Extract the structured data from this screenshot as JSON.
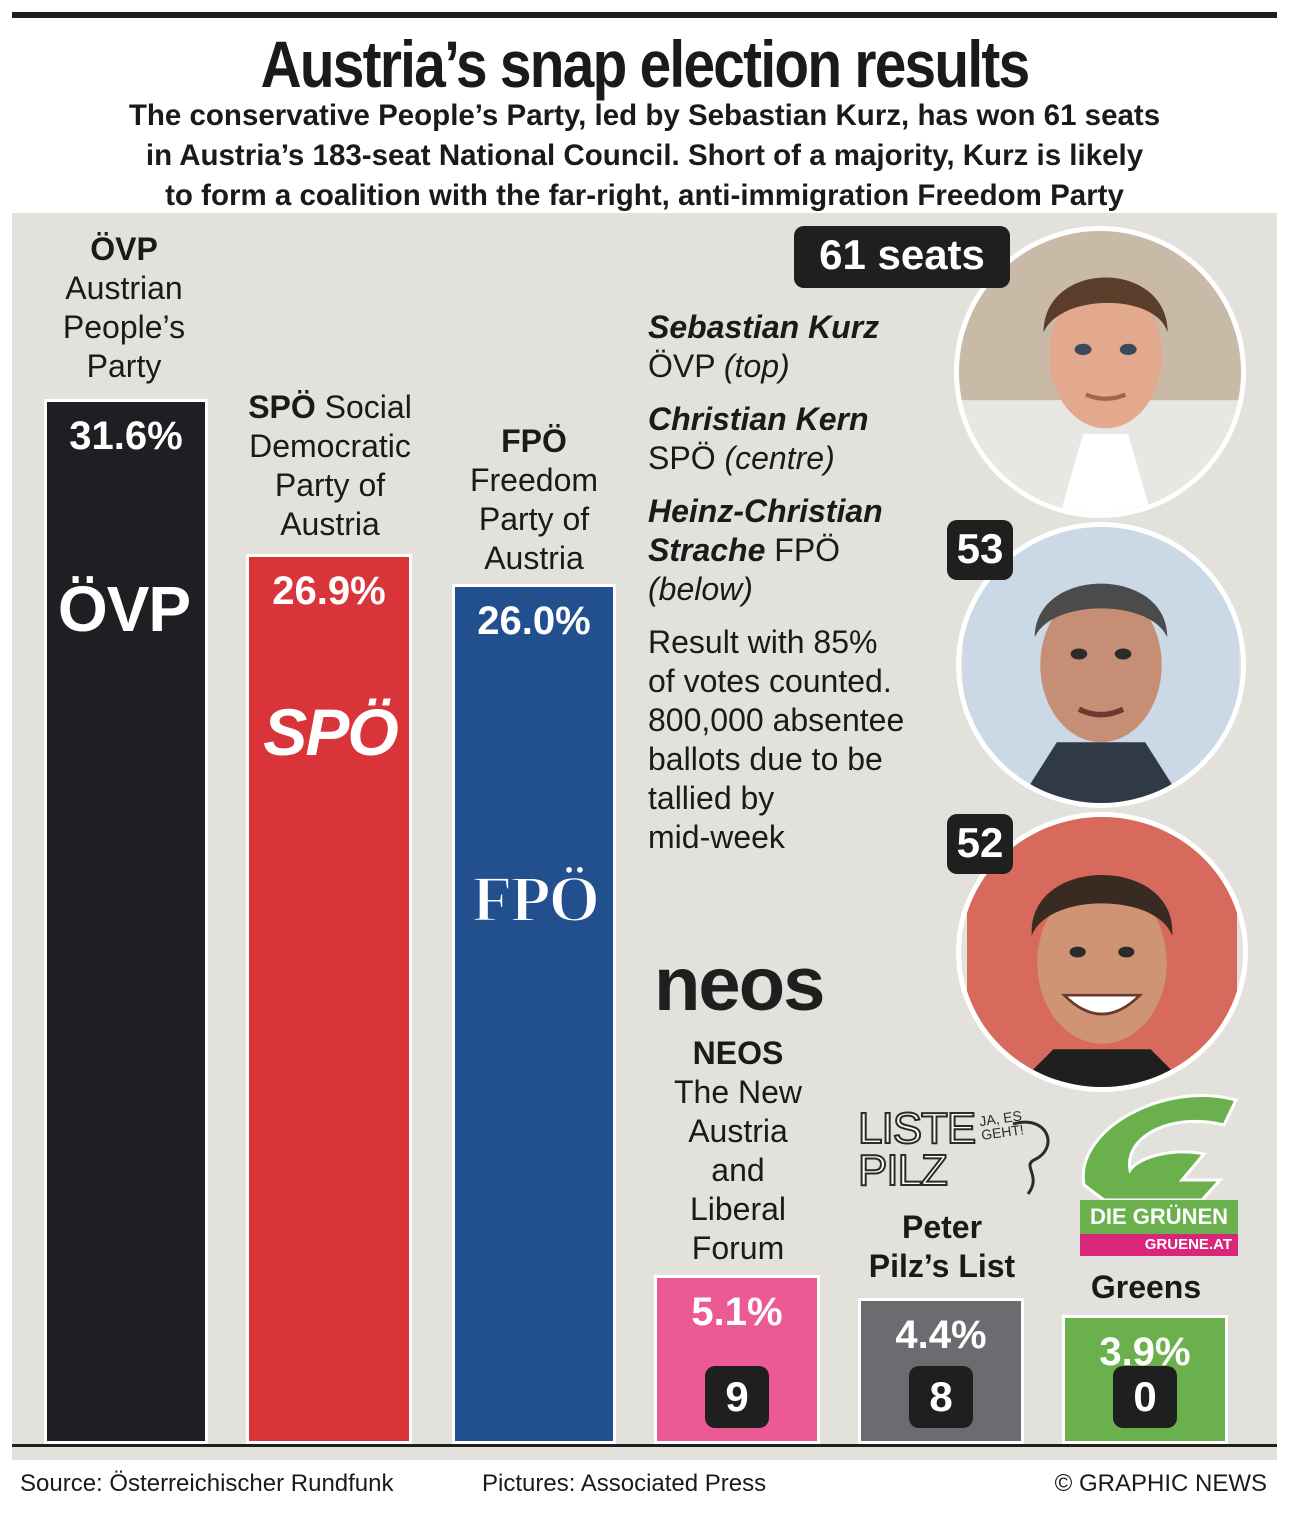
{
  "header": {
    "title": "Austria’s snap election results",
    "subtitle_lines": [
      "The conservative People’s Party, led by Sebastian Kurz, has won 61 seats",
      "in Austria’s 183-seat National Council.  Short of a majority, Kurz is likely",
      "to form a coalition with the far-right, anti-immigration Freedom Party"
    ]
  },
  "chart_data": {
    "type": "bar",
    "title": "Austria’s snap election results",
    "categories": [
      "ÖVP",
      "SPÖ",
      "FPÖ",
      "NEOS",
      "Peter Pilz’s List",
      "Greens"
    ],
    "values": [
      31.6,
      26.9,
      26.0,
      5.1,
      4.4,
      3.9
    ],
    "value_labels": [
      "31.6%",
      "26.9%",
      "26.0%",
      "5.1%",
      "4.4%",
      "3.9%"
    ],
    "seats": [
      "61 seats",
      "53",
      "52",
      "9",
      "8",
      "0"
    ],
    "ylim": [
      0,
      35
    ],
    "grid": false,
    "colors": [
      "#1f1e23",
      "#d8343a",
      "#22508f",
      "#eb5a95",
      "#6b6c70",
      "#6ab04c"
    ]
  },
  "parties": [
    {
      "abbr": "ÖVP",
      "name_lines": [
        "Austrian",
        "People’s",
        "Party"
      ],
      "logo_text": "ÖVP",
      "color": "#1f1e23"
    },
    {
      "abbr": "SPÖ",
      "name_lines": [
        "Social",
        "Democratic",
        "Party of",
        "Austria"
      ],
      "logo_text": "SPÖ",
      "color": "#d8343a"
    },
    {
      "abbr": "FPÖ",
      "name_lines": [
        "Freedom",
        "Party of",
        "Austria"
      ],
      "logo_text": "FPÖ",
      "color": "#22508f"
    },
    {
      "abbr": "NEOS",
      "name_lines": [
        "The New",
        "Austria",
        "and",
        "Liberal",
        "Forum"
      ],
      "logo_text": "neos",
      "color": "#eb5a95"
    },
    {
      "abbr": "",
      "name_lines": [
        "Peter",
        "Pilz’s List"
      ],
      "logo_text": "LISTE PILZ",
      "logo_small_text": "JA, ES GEHT!",
      "color": "#6b6c70"
    },
    {
      "abbr": "",
      "name_lines": [
        "Greens"
      ],
      "logo_text": "DIE GRÜNEN",
      "logo_small_text": "GRUENE.AT",
      "color": "#6ab04c"
    }
  ],
  "notes": {
    "kurz": {
      "name": "Sebastian Kurz",
      "party": "ÖVP",
      "position": "(top)"
    },
    "kern": {
      "name": "Christian Kern",
      "party": "SPÖ",
      "position": "(centre)"
    },
    "strache": {
      "name_line1": "Heinz-Christian",
      "name_line2": "Strache",
      "party": "FPÖ",
      "position": "(below)"
    },
    "result_lines": [
      "Result with 85%",
      "of votes counted.",
      "800,000 absentee",
      "ballots due to be",
      "tallied by",
      "mid-week"
    ]
  },
  "footer": {
    "source": "Source: Österreichischer Rundfunk",
    "pictures": "Pictures: Associated Press",
    "credit": "© GRAPHIC NEWS"
  }
}
